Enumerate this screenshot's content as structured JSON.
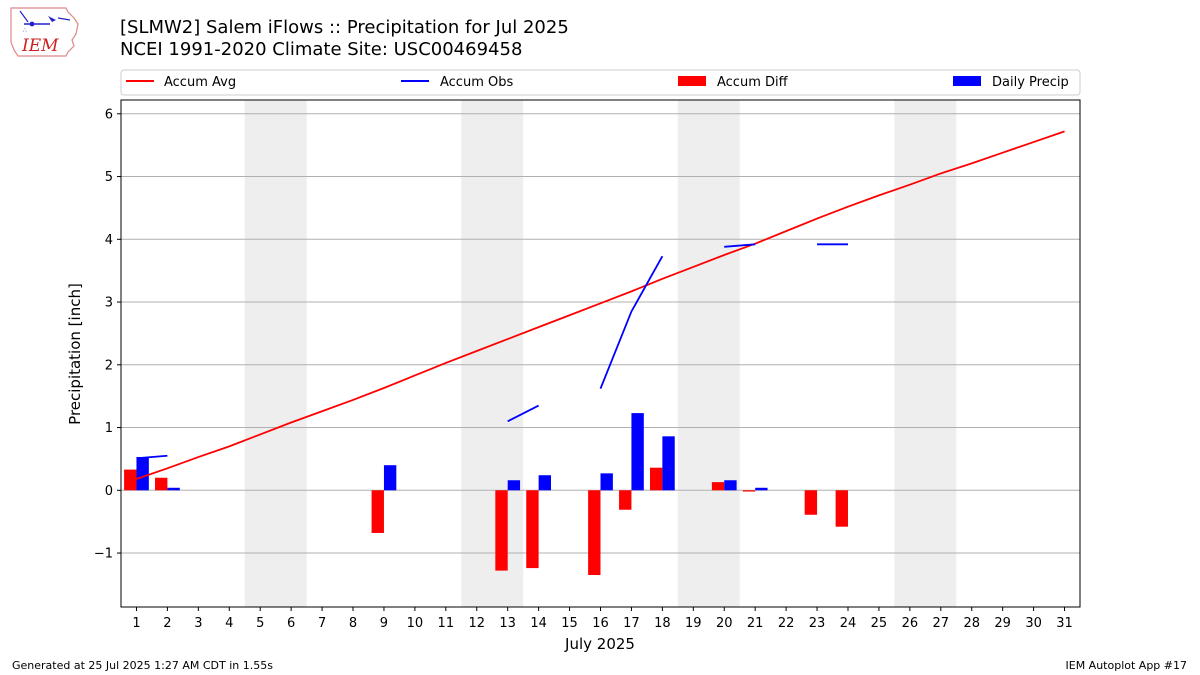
{
  "header": {
    "title_line1": "[SLMW2] Salem iFlows :: Precipitation for Jul 2025",
    "title_line2": "NCEI 1991-2020 Climate Site: USC00469458"
  },
  "footer": {
    "generated": "Generated at 25 Jul 2025 1:27 AM CDT in 1.55s",
    "app": "IEM Autoplot App #17"
  },
  "logo": {
    "text": "IEM"
  },
  "colors": {
    "avg": "#ff0000",
    "obs": "#0000ff",
    "diff": "#ff0000",
    "daily": "#0000ff",
    "weekend": "#eeeeee",
    "grid": "#b0b0b0"
  },
  "chart_data": {
    "type": "bar",
    "title": "[SLMW2] Salem iFlows :: Precipitation for Jul 2025",
    "xlabel": "July 2025",
    "ylabel": "Precipitation [inch]",
    "xlim": [
      0.5,
      31.5
    ],
    "ylim": [
      -1.86,
      6.22
    ],
    "yticks": [
      -1,
      0,
      1,
      2,
      3,
      4,
      5,
      6
    ],
    "ytick_labels": [
      "−1",
      "0",
      "1",
      "2",
      "3",
      "4",
      "5",
      "6"
    ],
    "days": [
      1,
      2,
      3,
      4,
      5,
      6,
      7,
      8,
      9,
      10,
      11,
      12,
      13,
      14,
      15,
      16,
      17,
      18,
      19,
      20,
      21,
      22,
      23,
      24,
      25,
      26,
      27,
      28,
      29,
      30,
      31
    ],
    "weekend_spans": [
      [
        4.5,
        6.5
      ],
      [
        11.5,
        13.5
      ],
      [
        18.5,
        20.5
      ],
      [
        25.5,
        27.5
      ]
    ],
    "legend": {
      "position": "top",
      "entries": [
        {
          "label": "Accum Avg",
          "kind": "line",
          "color": "#ff0000"
        },
        {
          "label": "Accum Obs",
          "kind": "line",
          "color": "#0000ff"
        },
        {
          "label": "Accum Diff",
          "kind": "bar",
          "color": "#ff0000"
        },
        {
          "label": "Daily Precip",
          "kind": "bar",
          "color": "#0000ff"
        }
      ]
    },
    "series": [
      {
        "name": "Accum Avg",
        "kind": "line",
        "values": [
          0.18,
          0.35,
          0.53,
          0.7,
          0.89,
          1.08,
          1.26,
          1.44,
          1.63,
          1.83,
          2.03,
          2.22,
          2.41,
          2.6,
          2.79,
          2.98,
          3.17,
          3.37,
          3.56,
          3.75,
          3.93,
          4.13,
          4.33,
          4.52,
          4.7,
          4.87,
          5.05,
          5.21,
          5.38,
          5.55,
          5.72
        ]
      },
      {
        "name": "Accum Obs",
        "kind": "line",
        "values": [
          0.51,
          0.55,
          null,
          null,
          null,
          null,
          null,
          null,
          null,
          null,
          null,
          null,
          1.1,
          1.35,
          null,
          1.62,
          2.85,
          3.73,
          null,
          3.88,
          3.92,
          null,
          3.92,
          3.92,
          null,
          null,
          null,
          null,
          null,
          null,
          null
        ]
      },
      {
        "name": "Accum Diff",
        "kind": "bar",
        "values": [
          0.33,
          0.2,
          null,
          null,
          null,
          null,
          null,
          null,
          -0.68,
          null,
          null,
          null,
          -1.28,
          -1.24,
          null,
          -1.35,
          -0.31,
          0.36,
          null,
          0.13,
          -0.02,
          null,
          -0.39,
          -0.58,
          null,
          null,
          null,
          null,
          null,
          null,
          null
        ]
      },
      {
        "name": "Daily Precip",
        "kind": "bar",
        "values": [
          0.53,
          0.04,
          null,
          null,
          null,
          null,
          null,
          null,
          0.4,
          null,
          null,
          null,
          0.16,
          0.24,
          null,
          0.27,
          1.23,
          0.86,
          null,
          0.16,
          0.04,
          null,
          null,
          null,
          null,
          null,
          null,
          null,
          null,
          null,
          null
        ]
      }
    ]
  }
}
